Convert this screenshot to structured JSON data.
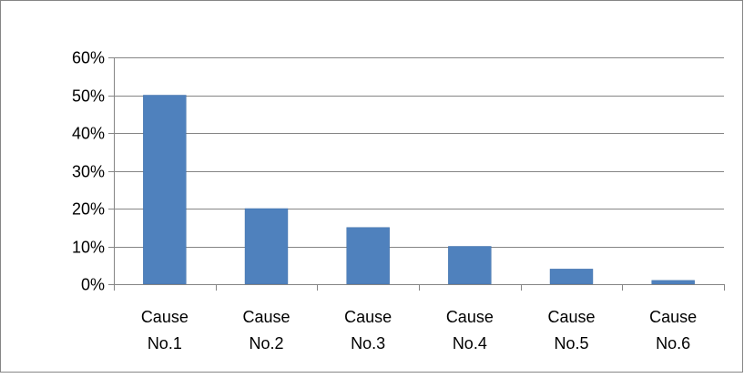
{
  "chart_data": {
    "type": "bar",
    "categories": [
      [
        "Cause",
        "No.1"
      ],
      [
        "Cause",
        "No.2"
      ],
      [
        "Cause",
        "No.3"
      ],
      [
        "Cause",
        "No.4"
      ],
      [
        "Cause",
        "No.5"
      ],
      [
        "Cause",
        "No.6"
      ]
    ],
    "values": [
      50,
      20,
      15,
      10,
      4,
      1
    ],
    "ylim": [
      0,
      60
    ],
    "yticks": [
      0,
      10,
      20,
      30,
      40,
      50,
      60
    ],
    "ytick_labels": [
      "0%",
      "10%",
      "20%",
      "30%",
      "40%",
      "50%",
      "60%"
    ],
    "grid": true,
    "legend": "none",
    "colors": {
      "bar": "#4f81bd",
      "bar_edge": "#3f6fa8",
      "grid": "#858585",
      "axis": "#858585",
      "frame": "#868686"
    }
  }
}
